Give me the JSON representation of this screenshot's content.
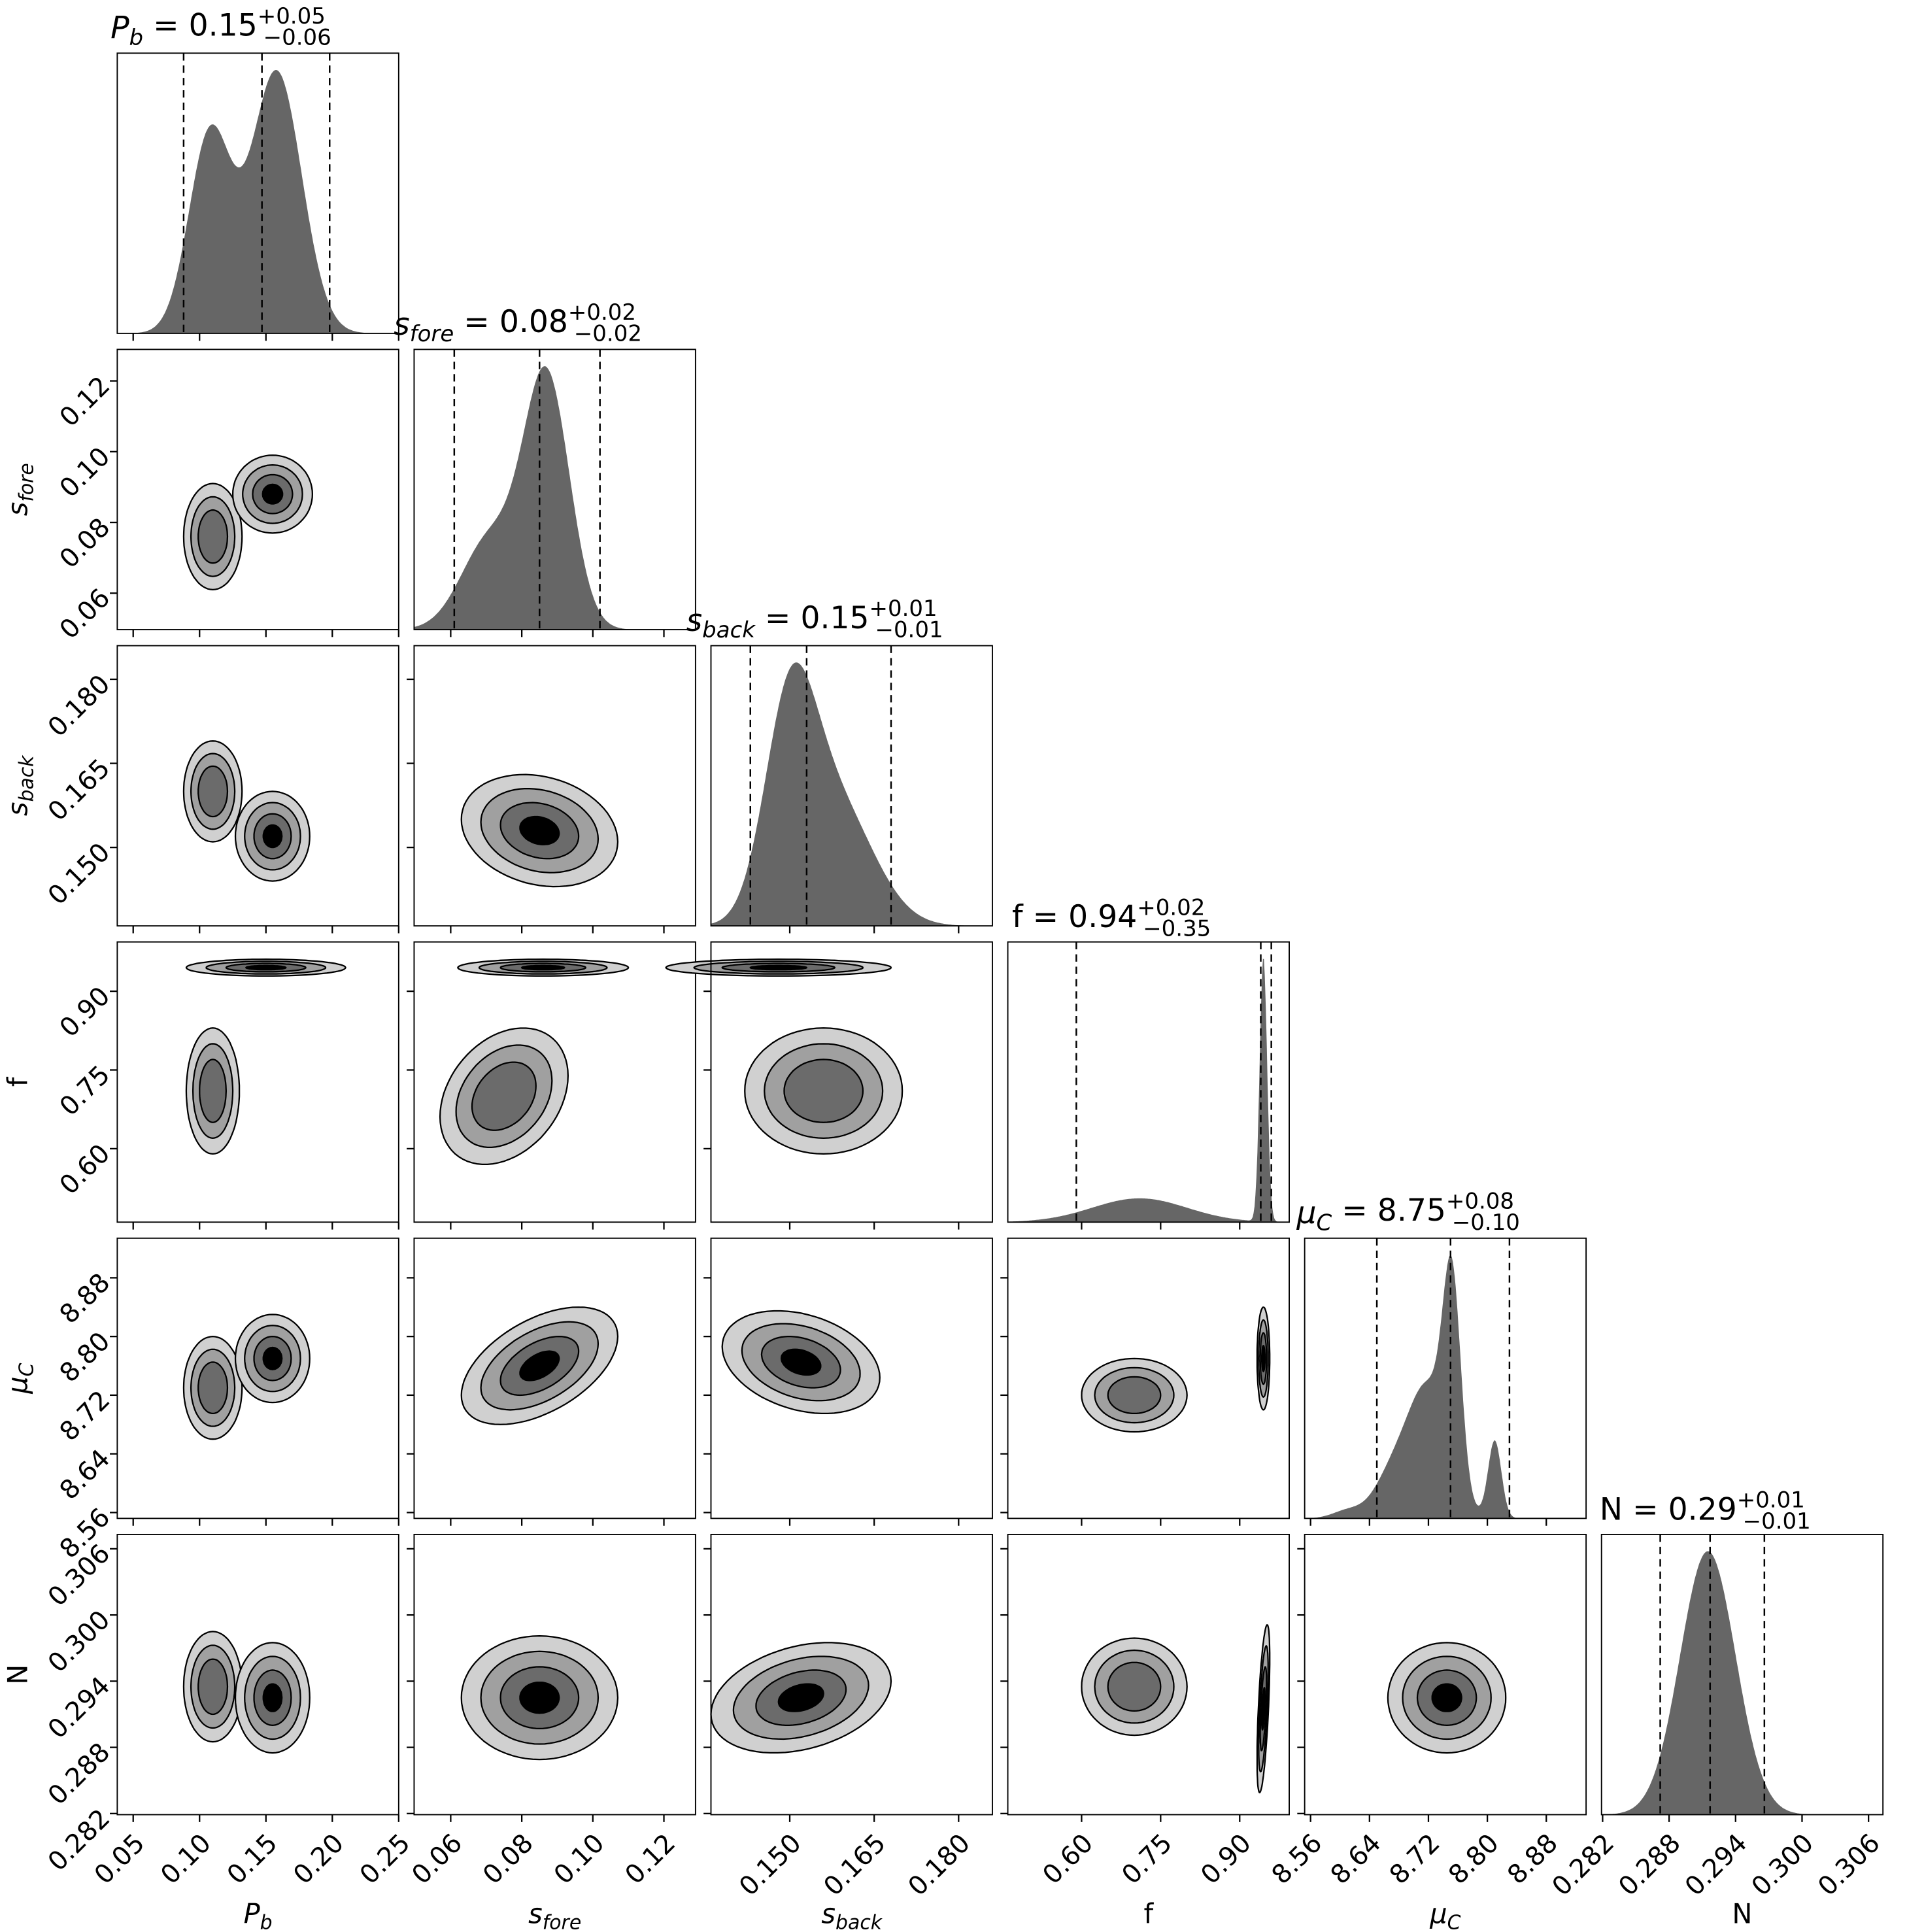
{
  "chart_data": {
    "type": "corner",
    "title": "",
    "params": [
      {
        "key": "Pb",
        "symbol": "P",
        "sub": "b",
        "italic": true,
        "range": [
          0.038,
          0.25
        ],
        "ticks": [
          0.05,
          0.1,
          0.15,
          0.2,
          0.25
        ],
        "tick_labels": [
          "0.05",
          "0.10",
          "0.15",
          "0.20",
          "0.25"
        ],
        "title": {
          "value": "0.15",
          "plus": "+0.05",
          "minus": "−0.06"
        },
        "quantiles": [
          0.088,
          0.147,
          0.198
        ],
        "hist": [
          {
            "mu": 0.108,
            "sd": 0.016,
            "w": 0.74
          },
          {
            "mu": 0.158,
            "sd": 0.019,
            "w": 0.97
          }
        ]
      },
      {
        "key": "sfore",
        "symbol": "s",
        "sub": "fore",
        "italic": true,
        "range": [
          0.0497,
          0.1289
        ],
        "ticks": [
          0.06,
          0.08,
          0.1,
          0.12
        ],
        "tick_labels": [
          "0.06",
          "0.08",
          "0.10",
          "0.12"
        ],
        "title": {
          "value": "0.08",
          "plus": "+0.02",
          "minus": "−0.02"
        },
        "quantiles": [
          0.061,
          0.085,
          0.102
        ],
        "hist": [
          {
            "mu": 0.087,
            "sd": 0.0065,
            "w": 1.0
          },
          {
            "mu": 0.071,
            "sd": 0.008,
            "w": 0.36
          }
        ]
      },
      {
        "key": "sback",
        "symbol": "s",
        "sub": "back",
        "italic": true,
        "range": [
          0.136,
          0.186
        ],
        "ticks": [
          0.15,
          0.165,
          0.18
        ],
        "tick_labels": [
          "0.150",
          "0.165",
          "0.180"
        ],
        "title": {
          "value": "0.15",
          "plus": "+0.01",
          "minus": "−0.01"
        },
        "quantiles": [
          0.143,
          0.153,
          0.168
        ],
        "hist": [
          {
            "mu": 0.15,
            "sd": 0.0045,
            "w": 0.8
          },
          {
            "mu": 0.158,
            "sd": 0.0068,
            "w": 0.5
          }
        ]
      },
      {
        "key": "f",
        "symbol": "f",
        "sub": "",
        "italic": false,
        "range": [
          0.46,
          0.994
        ],
        "ticks": [
          0.6,
          0.75,
          0.9
        ],
        "tick_labels": [
          "0.60",
          "0.75",
          "0.90"
        ],
        "title": {
          "value": "0.94",
          "plus": "+0.02",
          "minus": "−0.35"
        },
        "quantiles": [
          0.59,
          0.94,
          0.96
        ],
        "hist": [
          {
            "mu": 0.945,
            "sd": 0.007,
            "w": 1.0
          },
          {
            "mu": 0.71,
            "sd": 0.09,
            "w": 0.09
          }
        ]
      },
      {
        "key": "muC",
        "symbol": "μ",
        "sub": "C",
        "italic": true,
        "range": [
          8.552,
          8.934
        ],
        "ticks": [
          8.56,
          8.64,
          8.72,
          8.8,
          8.88
        ],
        "tick_labels": [
          "8.56",
          "8.64",
          "8.72",
          "8.80",
          "8.88"
        ],
        "title": {
          "value": "8.75",
          "plus": "+0.08",
          "minus": "−0.10"
        },
        "quantiles": [
          8.65,
          8.75,
          8.83
        ],
        "hist": [
          {
            "mu": 8.752,
            "sd": 0.012,
            "w": 0.75
          },
          {
            "mu": 8.72,
            "sd": 0.028,
            "w": 0.5
          },
          {
            "mu": 8.81,
            "sd": 0.009,
            "w": 0.3
          },
          {
            "mu": 8.67,
            "sd": 0.025,
            "w": 0.15
          },
          {
            "mu": 8.61,
            "sd": 0.02,
            "w": 0.03
          }
        ]
      },
      {
        "key": "N",
        "symbol": "N",
        "sub": "",
        "italic": false,
        "range": [
          0.2819,
          0.3073
        ],
        "ticks": [
          0.282,
          0.288,
          0.294,
          0.3,
          0.306
        ],
        "tick_labels": [
          "0.282",
          "0.288",
          "0.294",
          "0.300",
          "0.306"
        ],
        "title": {
          "value": "0.29",
          "plus": "+0.01",
          "minus": "−0.01"
        },
        "quantiles": [
          0.2872,
          0.2917,
          0.2966
        ],
        "hist": [
          {
            "mu": 0.2915,
            "sd": 0.0025,
            "w": 1.0
          }
        ]
      }
    ],
    "contour_levels_sigma": [
      2.0,
      1.5,
      1.0,
      0.5
    ],
    "contour_fills": [
      "#d0d0d0",
      "#a0a0a0",
      "#6b6b6b",
      "#000000"
    ],
    "pairs": [
      {
        "row": 1,
        "col": 0,
        "blobs": [
          {
            "x": 0.11,
            "y": 0.076,
            "sx": 0.011,
            "sy": 0.0075,
            "rho": 0,
            "levels": 3
          },
          {
            "x": 0.155,
            "y": 0.088,
            "sx": 0.015,
            "sy": 0.0055,
            "rho": 0,
            "levels": 4
          }
        ]
      },
      {
        "row": 2,
        "col": 0,
        "blobs": [
          {
            "x": 0.11,
            "y": 0.16,
            "sx": 0.011,
            "sy": 0.0045,
            "rho": 0,
            "levels": 3
          },
          {
            "x": 0.155,
            "y": 0.152,
            "sx": 0.014,
            "sy": 0.004,
            "rho": 0,
            "levels": 4
          }
        ]
      },
      {
        "row": 2,
        "col": 1,
        "blobs": [
          {
            "x": 0.085,
            "y": 0.153,
            "sx": 0.011,
            "sy": 0.005,
            "rho": -0.2,
            "levels": 4
          }
        ]
      },
      {
        "row": 3,
        "col": 0,
        "blobs": [
          {
            "x": 0.15,
            "y": 0.945,
            "sx": 0.03,
            "sy": 0.008,
            "rho": 0,
            "levels": 4
          },
          {
            "x": 0.11,
            "y": 0.71,
            "sx": 0.01,
            "sy": 0.06,
            "rho": 0,
            "levels": 3
          }
        ]
      },
      {
        "row": 3,
        "col": 1,
        "blobs": [
          {
            "x": 0.086,
            "y": 0.945,
            "sx": 0.012,
            "sy": 0.008,
            "rho": 0,
            "levels": 4
          },
          {
            "x": 0.075,
            "y": 0.7,
            "sx": 0.009,
            "sy": 0.065,
            "rho": 0.3,
            "levels": 3
          }
        ]
      },
      {
        "row": 3,
        "col": 2,
        "blobs": [
          {
            "x": 0.148,
            "y": 0.945,
            "sx": 0.01,
            "sy": 0.008,
            "rho": 0,
            "levels": 4
          },
          {
            "x": 0.156,
            "y": 0.71,
            "sx": 0.007,
            "sy": 0.06,
            "rho": 0,
            "levels": 3
          }
        ]
      },
      {
        "row": 4,
        "col": 0,
        "blobs": [
          {
            "x": 0.11,
            "y": 8.73,
            "sx": 0.011,
            "sy": 0.035,
            "rho": 0,
            "levels": 3
          },
          {
            "x": 0.155,
            "y": 8.77,
            "sx": 0.014,
            "sy": 0.03,
            "rho": 0,
            "levels": 4
          }
        ]
      },
      {
        "row": 4,
        "col": 1,
        "blobs": [
          {
            "x": 0.085,
            "y": 8.76,
            "sx": 0.011,
            "sy": 0.04,
            "rho": 0.5,
            "levels": 4
          }
        ]
      },
      {
        "row": 4,
        "col": 2,
        "blobs": [
          {
            "x": 0.152,
            "y": 8.765,
            "sx": 0.007,
            "sy": 0.035,
            "rho": -0.3,
            "levels": 4
          }
        ]
      },
      {
        "row": 4,
        "col": 3,
        "blobs": [
          {
            "x": 0.945,
            "y": 8.77,
            "sx": 0.006,
            "sy": 0.035,
            "rho": 0,
            "levels": 4
          },
          {
            "x": 0.7,
            "y": 8.72,
            "sx": 0.05,
            "sy": 0.025,
            "rho": 0,
            "levels": 3
          }
        ]
      },
      {
        "row": 5,
        "col": 0,
        "blobs": [
          {
            "x": 0.11,
            "y": 0.2935,
            "sx": 0.011,
            "sy": 0.0025,
            "rho": 0,
            "levels": 3
          },
          {
            "x": 0.155,
            "y": 0.2925,
            "sx": 0.014,
            "sy": 0.0025,
            "rho": 0,
            "levels": 4
          }
        ]
      },
      {
        "row": 5,
        "col": 1,
        "blobs": [
          {
            "x": 0.085,
            "y": 0.2925,
            "sx": 0.011,
            "sy": 0.0028,
            "rho": 0,
            "levels": 4
          }
        ]
      },
      {
        "row": 5,
        "col": 2,
        "blobs": [
          {
            "x": 0.152,
            "y": 0.2925,
            "sx": 0.008,
            "sy": 0.0025,
            "rho": 0.3,
            "levels": 4
          }
        ]
      },
      {
        "row": 5,
        "col": 3,
        "blobs": [
          {
            "x": 0.945,
            "y": 0.2915,
            "sx": 0.006,
            "sy": 0.0038,
            "rho": 0.6,
            "levels": 4
          },
          {
            "x": 0.7,
            "y": 0.2935,
            "sx": 0.05,
            "sy": 0.0022,
            "rho": 0,
            "levels": 3
          }
        ]
      },
      {
        "row": 5,
        "col": 4,
        "blobs": [
          {
            "x": 8.745,
            "y": 0.2925,
            "sx": 0.04,
            "sy": 0.0025,
            "rho": 0,
            "levels": 4
          }
        ]
      }
    ]
  }
}
